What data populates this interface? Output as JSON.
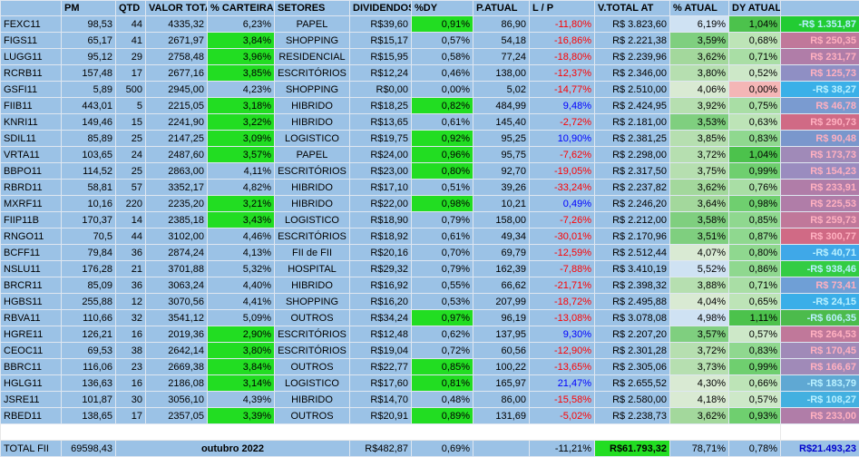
{
  "header": [
    "PM",
    "QTD",
    "VALOR TOTA",
    "% CARTEIRA",
    "SETORES",
    "DIVIDENDOS",
    "%DY",
    "P.ATUAL",
    "L / P",
    "V.TOTAL AT",
    "% ATUAL",
    "DY ATUAL"
  ],
  "rows": [
    {
      "cells": [
        "FEXC11",
        "98,53",
        "44",
        "4335,32",
        "6,23%",
        "PAPEL",
        "R$39,60",
        "0,91%",
        "86,90",
        "-11,80%",
        "R$ 3.823,60",
        "6,19%",
        "1,04%",
        "-R$ 1.351,87"
      ],
      "fills": {
        "7": "#22dd22",
        "11": "#cfe2f3",
        "12": "#4cc24c",
        "13": "#22cc33"
      },
      "colors": {
        "9": "#ff0000",
        "13": "#b8f0ff"
      }
    },
    {
      "cells": [
        "FIGS11",
        "65,17",
        "41",
        "2671,97",
        "3,84%",
        "SHOPPING",
        "R$15,17",
        "0,57%",
        "54,18",
        "-16,86%",
        "R$ 2.221,38",
        "3,59%",
        "0,68%",
        "R$ 250,35"
      ],
      "fills": {
        "4": "#22dd22",
        "11": "#7fcf7f",
        "12": "#bde4b7",
        "13": "#c0789a"
      },
      "colors": {
        "9": "#ff0000",
        "13": "#ffb0c0"
      }
    },
    {
      "cells": [
        "LUGG11",
        "95,12",
        "29",
        "2758,48",
        "3,96%",
        "RESIDENCIAL",
        "R$15,95",
        "0,58%",
        "77,24",
        "-18,80%",
        "R$ 2.239,96",
        "3,62%",
        "0,71%",
        "R$ 231,77"
      ],
      "fills": {
        "4": "#22dd22",
        "11": "#a3d89c",
        "12": "#a9dea5",
        "13": "#b07da8"
      },
      "colors": {
        "9": "#ff0000",
        "13": "#ffb0c0"
      }
    },
    {
      "cells": [
        "RCRB11",
        "157,48",
        "17",
        "2677,16",
        "3,85%",
        "ESCRITÓRIOS",
        "R$12,24",
        "0,46%",
        "138,00",
        "-12,37%",
        "R$ 2.346,00",
        "3,80%",
        "0,52%",
        "R$ 125,73"
      ],
      "fills": {
        "4": "#22dd22",
        "11": "#b6dfb0",
        "12": "#cde8c8",
        "13": "#8f8fc4"
      },
      "colors": {
        "9": "#ff0000",
        "13": "#ffb0c0"
      }
    },
    {
      "cells": [
        "GSFI11",
        "5,89",
        "500",
        "2945,00",
        "4,23%",
        "SHOPPING",
        "R$0,00",
        "0,00%",
        "5,02",
        "-14,77%",
        "R$ 2.510,00",
        "4,06%",
        "0,00%",
        "-R$ 38,27"
      ],
      "fills": {
        "11": "#d9ead3",
        "12": "#f4b6b6",
        "13": "#3ab0e8"
      },
      "colors": {
        "9": "#ff0000",
        "13": "#b8f0ff"
      }
    },
    {
      "cells": [
        "FIIB11",
        "443,01",
        "5",
        "2215,05",
        "3,18%",
        "HIBRIDO",
        "R$18,25",
        "0,82%",
        "484,99",
        "9,48%",
        "R$ 2.424,95",
        "3,92%",
        "0,75%",
        "R$ 46,78"
      ],
      "fills": {
        "4": "#22dd22",
        "7": "#22dd22",
        "11": "#b6dfb0",
        "12": "#a9dea5",
        "13": "#7a9bd0"
      },
      "colors": {
        "9": "#0000ff",
        "13": "#ffb0c0"
      }
    },
    {
      "cells": [
        "KNRI11",
        "149,46",
        "15",
        "2241,90",
        "3,22%",
        "HIBRIDO",
        "R$13,65",
        "0,61%",
        "145,40",
        "-2,72%",
        "R$ 2.181,00",
        "3,53%",
        "0,63%",
        "R$ 290,73"
      ],
      "fills": {
        "4": "#22dd22",
        "11": "#7fcf7f",
        "12": "#bde4b7",
        "13": "#d06a85"
      },
      "colors": {
        "9": "#ff0000",
        "13": "#ffb0c0"
      }
    },
    {
      "cells": [
        "SDIL11",
        "85,89",
        "25",
        "2147,25",
        "3,09%",
        "LOGISTICO",
        "R$19,75",
        "0,92%",
        "95,25",
        "10,90%",
        "R$ 2.381,25",
        "3,85%",
        "0,83%",
        "R$ 90,48"
      ],
      "fills": {
        "4": "#22dd22",
        "7": "#22dd22",
        "11": "#b6dfb0",
        "12": "#8fd88f",
        "13": "#7a97cc"
      },
      "colors": {
        "9": "#0000ff",
        "13": "#ffb0c0"
      }
    },
    {
      "cells": [
        "VRTA11",
        "103,65",
        "24",
        "2487,60",
        "3,57%",
        "PAPEL",
        "R$24,00",
        "0,96%",
        "95,75",
        "-7,62%",
        "R$ 2.298,00",
        "3,72%",
        "1,04%",
        "R$ 173,73"
      ],
      "fills": {
        "4": "#22dd22",
        "7": "#22dd22",
        "11": "#b6dfb0",
        "12": "#4cc24c",
        "13": "#a08ab8"
      },
      "colors": {
        "9": "#ff0000",
        "13": "#ffb0c0"
      }
    },
    {
      "cells": [
        "BBPO11",
        "114,52",
        "25",
        "2863,00",
        "4,11%",
        "ESCRITÓRIOS",
        "R$23,00",
        "0,80%",
        "92,70",
        "-19,05%",
        "R$ 2.317,50",
        "3,75%",
        "0,99%",
        "R$ 154,23"
      ],
      "fills": {
        "7": "#22dd22",
        "11": "#b6dfb0",
        "12": "#6fcf6f",
        "13": "#9a8cbf"
      },
      "colors": {
        "9": "#ff0000",
        "13": "#ffb0c0"
      }
    },
    {
      "cells": [
        "RBRD11",
        "58,81",
        "57",
        "3352,17",
        "4,82%",
        "HIBRIDO",
        "R$17,10",
        "0,51%",
        "39,26",
        "-33,24%",
        "R$ 2.237,82",
        "3,62%",
        "0,76%",
        "R$ 233,91"
      ],
      "fills": {
        "11": "#a3d89c",
        "12": "#a9dea5",
        "13": "#b07da8"
      },
      "colors": {
        "9": "#ff0000",
        "13": "#ffb0c0"
      }
    },
    {
      "cells": [
        "MXRF11",
        "10,16",
        "220",
        "2235,20",
        "3,21%",
        "HIBRIDO",
        "R$22,00",
        "0,98%",
        "10,21",
        "0,49%",
        "R$ 2.246,20",
        "3,64%",
        "0,98%",
        "R$ 225,53"
      ],
      "fills": {
        "4": "#22dd22",
        "7": "#22dd22",
        "11": "#a3d89c",
        "12": "#6fcf6f",
        "13": "#b07da8"
      },
      "colors": {
        "9": "#0000ff",
        "13": "#ffb0c0"
      }
    },
    {
      "cells": [
        "FIIP11B",
        "170,37",
        "14",
        "2385,18",
        "3,43%",
        "LOGISTICO",
        "R$18,90",
        "0,79%",
        "158,00",
        "-7,26%",
        "R$ 2.212,00",
        "3,58%",
        "0,85%",
        "R$ 259,73"
      ],
      "fills": {
        "4": "#22dd22",
        "11": "#7fcf7f",
        "12": "#8fd88f",
        "13": "#c0789a"
      },
      "colors": {
        "9": "#ff0000",
        "13": "#ffb0c0"
      }
    },
    {
      "cells": [
        "RNGO11",
        "70,5",
        "44",
        "3102,00",
        "4,46%",
        "ESCRITÓRIOS",
        "R$18,92",
        "0,61%",
        "49,34",
        "-30,01%",
        "R$ 2.170,96",
        "3,51%",
        "0,87%",
        "R$ 300,77"
      ],
      "fills": {
        "11": "#7fcf7f",
        "12": "#8fd88f",
        "13": "#d06a85"
      },
      "colors": {
        "9": "#ff0000",
        "13": "#ffb0c0"
      }
    },
    {
      "cells": [
        "BCFF11",
        "79,84",
        "36",
        "2874,24",
        "4,13%",
        "FII de FII",
        "R$20,16",
        "0,70%",
        "69,79",
        "-12,59%",
        "R$ 2.512,44",
        "4,07%",
        "0,80%",
        "-R$ 40,71"
      ],
      "fills": {
        "11": "#d9ead3",
        "12": "#8fd88f",
        "13": "#3fa8e8"
      },
      "colors": {
        "9": "#ff0000",
        "13": "#b8f0ff"
      }
    },
    {
      "cells": [
        "NSLU11",
        "176,28",
        "21",
        "3701,88",
        "5,32%",
        "HOSPITAL",
        "R$29,32",
        "0,79%",
        "162,39",
        "-7,88%",
        "R$ 3.410,19",
        "5,52%",
        "0,86%",
        "-R$ 938,46"
      ],
      "fills": {
        "11": "#cfe2f3",
        "12": "#8fd88f",
        "13": "#33cc44"
      },
      "colors": {
        "9": "#ff0000",
        "13": "#b8f0ff"
      }
    },
    {
      "cells": [
        "BRCR11",
        "85,09",
        "36",
        "3063,24",
        "4,40%",
        "HIBRIDO",
        "R$16,92",
        "0,55%",
        "66,62",
        "-21,71%",
        "R$ 2.398,32",
        "3,88%",
        "0,71%",
        "R$ 73,41"
      ],
      "fills": {
        "11": "#b6dfb0",
        "12": "#a9dea5",
        "13": "#6f9fd6"
      },
      "colors": {
        "9": "#ff0000",
        "13": "#ffb0c0"
      }
    },
    {
      "cells": [
        "HGBS11",
        "255,88",
        "12",
        "3070,56",
        "4,41%",
        "SHOPPING",
        "R$16,20",
        "0,53%",
        "207,99",
        "-18,72%",
        "R$ 2.495,88",
        "4,04%",
        "0,65%",
        "-R$ 24,15"
      ],
      "fills": {
        "11": "#d9ead3",
        "12": "#bde4b7",
        "13": "#3aaee8"
      },
      "colors": {
        "9": "#ff0000",
        "13": "#b8f0ff"
      }
    },
    {
      "cells": [
        "RBVA11",
        "110,66",
        "32",
        "3541,12",
        "5,09%",
        "OUTROS",
        "R$34,24",
        "0,97%",
        "96,19",
        "-13,08%",
        "R$ 3.078,08",
        "4,98%",
        "1,11%",
        "-R$ 606,35"
      ],
      "fills": {
        "7": "#22dd22",
        "11": "#cfe2f3",
        "12": "#4cc24c",
        "13": "#4cbb4c"
      },
      "colors": {
        "9": "#ff0000",
        "13": "#b8f0ff"
      }
    },
    {
      "cells": [
        "HGRE11",
        "126,21",
        "16",
        "2019,36",
        "2,90%",
        "ESCRITÓRIOS",
        "R$12,48",
        "0,62%",
        "137,95",
        "9,30%",
        "R$ 2.207,20",
        "3,57%",
        "0,57%",
        "R$ 264,53"
      ],
      "fills": {
        "4": "#22dd22",
        "11": "#7fcf7f",
        "12": "#cde8c8",
        "13": "#c0789a"
      },
      "colors": {
        "9": "#0000ff",
        "13": "#ffb0c0"
      }
    },
    {
      "cells": [
        "CEOC11",
        "69,53",
        "38",
        "2642,14",
        "3,80%",
        "ESCRITÓRIOS",
        "R$19,04",
        "0,72%",
        "60,56",
        "-12,90%",
        "R$ 2.301,28",
        "3,72%",
        "0,83%",
        "R$ 170,45"
      ],
      "fills": {
        "4": "#22dd22",
        "11": "#b6dfb0",
        "12": "#8fd88f",
        "13": "#a08ab8"
      },
      "colors": {
        "9": "#ff0000",
        "13": "#ffb0c0"
      }
    },
    {
      "cells": [
        "BBRC11",
        "116,06",
        "23",
        "2669,38",
        "3,84%",
        "OUTROS",
        "R$22,77",
        "0,85%",
        "100,22",
        "-13,65%",
        "R$ 2.305,06",
        "3,73%",
        "0,99%",
        "R$ 166,67"
      ],
      "fills": {
        "4": "#22dd22",
        "7": "#22dd22",
        "11": "#b6dfb0",
        "12": "#6fcf6f",
        "13": "#a08ab8"
      },
      "colors": {
        "9": "#ff0000",
        "13": "#ffb0c0"
      }
    },
    {
      "cells": [
        "HGLG11",
        "136,63",
        "16",
        "2186,08",
        "3,14%",
        "LOGISTICO",
        "R$17,60",
        "0,81%",
        "165,97",
        "21,47%",
        "R$ 2.655,52",
        "4,30%",
        "0,66%",
        "-R$ 183,79"
      ],
      "fills": {
        "4": "#22dd22",
        "7": "#22dd22",
        "11": "#d9ead3",
        "12": "#bde4b7",
        "13": "#5fa8d3"
      },
      "colors": {
        "9": "#0000ff",
        "13": "#b8f0ff"
      }
    },
    {
      "cells": [
        "JSRE11",
        "101,87",
        "30",
        "3056,10",
        "4,39%",
        "HIBRIDO",
        "R$14,70",
        "0,48%",
        "86,00",
        "-15,58%",
        "R$ 2.580,00",
        "4,18%",
        "0,57%",
        "-R$ 108,27"
      ],
      "fills": {
        "11": "#d9ead3",
        "12": "#cde8c8",
        "13": "#43b0e0"
      },
      "colors": {
        "9": "#ff0000",
        "13": "#b8f0ff"
      }
    },
    {
      "cells": [
        "RBED11",
        "138,65",
        "17",
        "2357,05",
        "3,39%",
        "OUTROS",
        "R$20,91",
        "0,89%",
        "131,69",
        "-5,02%",
        "R$ 2.238,73",
        "3,62%",
        "0,93%",
        "R$ 233,00"
      ],
      "fills": {
        "4": "#22dd22",
        "7": "#22dd22",
        "11": "#a3d89c",
        "12": "#6fcf6f",
        "13": "#b07da8"
      },
      "colors": {
        "9": "#ff0000",
        "13": "#ffb0c0"
      }
    }
  ],
  "total": {
    "label": "TOTAL FII",
    "valor": "69598,43",
    "month": "outubro 2022",
    "dividendos": "R$482,87",
    "dy": "0,69%",
    "lp": "-11,21%",
    "vtotal": "R$61.793,32",
    "atual": "78,71%",
    "dy_atual": "0,78%",
    "diff": "R$21.493,23"
  }
}
